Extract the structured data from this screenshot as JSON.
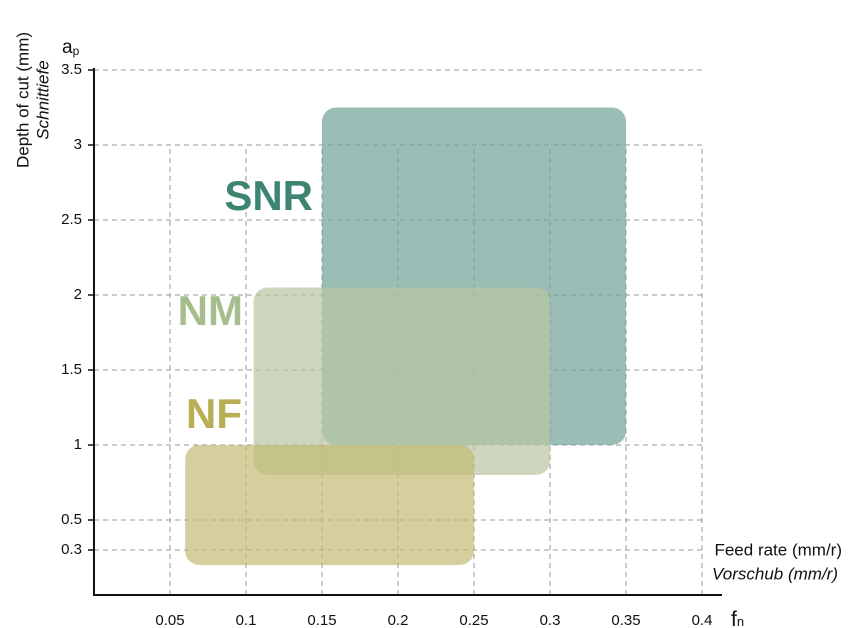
{
  "chart_data": {
    "type": "range",
    "y_symbol": {
      "main": "a",
      "sub": "p"
    },
    "x_symbol": {
      "main": "f",
      "sub": "n"
    },
    "y_label": "Depth of cut (mm)",
    "y_label_sub": "Schnittiefe",
    "x_label": "Feed rate (mm/r)",
    "x_label_sub": "Vorschub (mm/r)",
    "xlim": [
      0,
      0.4
    ],
    "ylim": [
      0,
      3.5
    ],
    "xticks": [
      0.05,
      0.1,
      0.15,
      0.2,
      0.25,
      0.3,
      0.35,
      0.4
    ],
    "yticks": [
      0.3,
      0.5,
      1,
      1.5,
      2,
      2.5,
      3,
      3.5
    ],
    "grid": true,
    "series": [
      {
        "name": "SNR",
        "color": "#6fa295",
        "label_color": "#3e8473",
        "x": [
          0.15,
          0.35
        ],
        "y": [
          1.0,
          3.25
        ]
      },
      {
        "name": "NM",
        "color": "#b9c6a2",
        "label_color": "#a8bd8d",
        "x": [
          0.105,
          0.3
        ],
        "y": [
          0.8,
          2.05
        ]
      },
      {
        "name": "NF",
        "color": "#c2bb74",
        "label_color": "#b9ad55",
        "x": [
          0.06,
          0.25
        ],
        "y": [
          0.2,
          1.0
        ]
      }
    ]
  }
}
